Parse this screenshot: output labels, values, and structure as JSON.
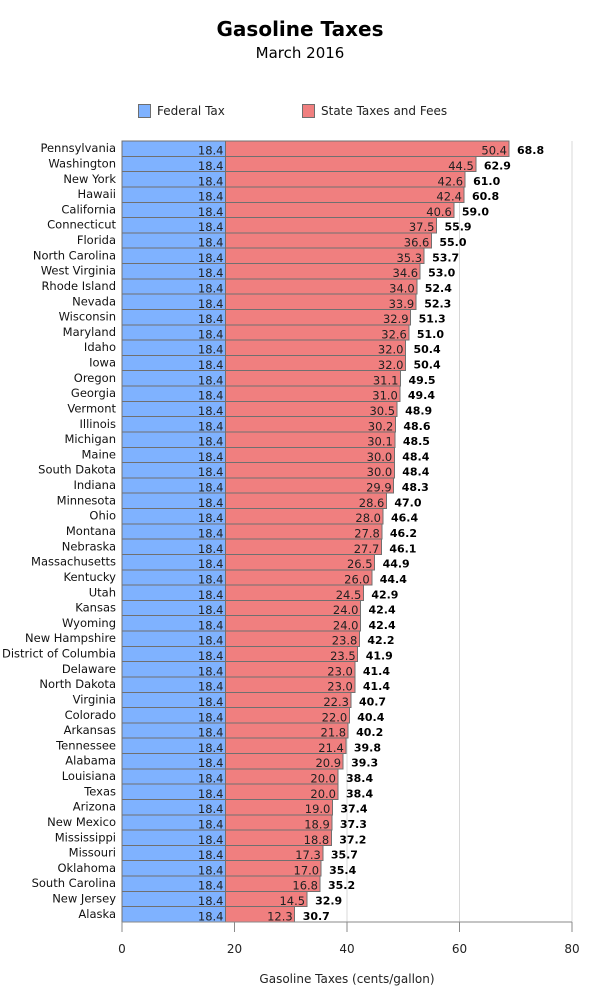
{
  "chart_data": {
    "type": "bar",
    "orientation": "horizontal",
    "stacked": true,
    "title": "Gasoline Taxes",
    "subtitle": "March 2016",
    "xlabel": "Gasoline Taxes (cents/gallon)",
    "ylabel": "",
    "xlim": [
      0,
      80
    ],
    "xticks": [
      0,
      20,
      40,
      60,
      80
    ],
    "grid": true,
    "legend_position": "top-center",
    "categories": [
      "Pennsylvania",
      "Washington",
      "New York",
      "Hawaii",
      "California",
      "Connecticut",
      "Florida",
      "North Carolina",
      "West Virginia",
      "Rhode Island",
      "Nevada",
      "Wisconsin",
      "Maryland",
      "Idaho",
      "Iowa",
      "Oregon",
      "Georgia",
      "Vermont",
      "Illinois",
      "Michigan",
      "Maine",
      "South Dakota",
      "Indiana",
      "Minnesota",
      "Ohio",
      "Montana",
      "Nebraska",
      "Massachusetts",
      "Kentucky",
      "Utah",
      "Kansas",
      "Wyoming",
      "New Hampshire",
      "District of Columbia",
      "Delaware",
      "North Dakota",
      "Virginia",
      "Colorado",
      "Arkansas",
      "Tennessee",
      "Alabama",
      "Louisiana",
      "Texas",
      "Arizona",
      "New Mexico",
      "Mississippi",
      "Missouri",
      "Oklahoma",
      "South Carolina",
      "New Jersey",
      "Alaska"
    ],
    "series": [
      {
        "name": "Federal Tax",
        "color": "#7fb2ff",
        "values": [
          18.4,
          18.4,
          18.4,
          18.4,
          18.4,
          18.4,
          18.4,
          18.4,
          18.4,
          18.4,
          18.4,
          18.4,
          18.4,
          18.4,
          18.4,
          18.4,
          18.4,
          18.4,
          18.4,
          18.4,
          18.4,
          18.4,
          18.4,
          18.4,
          18.4,
          18.4,
          18.4,
          18.4,
          18.4,
          18.4,
          18.4,
          18.4,
          18.4,
          18.4,
          18.4,
          18.4,
          18.4,
          18.4,
          18.4,
          18.4,
          18.4,
          18.4,
          18.4,
          18.4,
          18.4,
          18.4,
          18.4,
          18.4,
          18.4,
          18.4,
          18.4
        ]
      },
      {
        "name": "State Taxes and Fees",
        "color": "#f07f7f",
        "values": [
          50.4,
          44.5,
          42.6,
          42.4,
          40.6,
          37.5,
          36.6,
          35.3,
          34.6,
          34.0,
          33.9,
          32.9,
          32.6,
          32.0,
          32.0,
          31.1,
          31.0,
          30.5,
          30.2,
          30.1,
          30.0,
          30.0,
          29.9,
          28.6,
          28.0,
          27.8,
          27.7,
          26.5,
          26.0,
          24.5,
          24.0,
          24.0,
          23.8,
          23.5,
          23.0,
          23.0,
          22.3,
          22.0,
          21.8,
          21.4,
          20.9,
          20.0,
          20.0,
          19.0,
          18.9,
          18.8,
          17.3,
          17.0,
          16.8,
          14.5,
          12.3
        ]
      }
    ],
    "totals": [
      68.8,
      62.9,
      61.0,
      60.8,
      59.0,
      55.9,
      55.0,
      53.7,
      53.0,
      52.4,
      52.3,
      51.3,
      51.0,
      50.4,
      50.4,
      49.5,
      49.4,
      48.9,
      48.6,
      48.5,
      48.4,
      48.4,
      48.3,
      47.0,
      46.4,
      46.2,
      46.1,
      44.9,
      44.4,
      42.9,
      42.4,
      42.4,
      42.2,
      41.9,
      41.4,
      41.4,
      40.7,
      40.4,
      40.2,
      39.8,
      39.3,
      38.4,
      38.4,
      37.4,
      37.3,
      37.2,
      35.7,
      35.4,
      35.2,
      32.9,
      30.7
    ]
  }
}
